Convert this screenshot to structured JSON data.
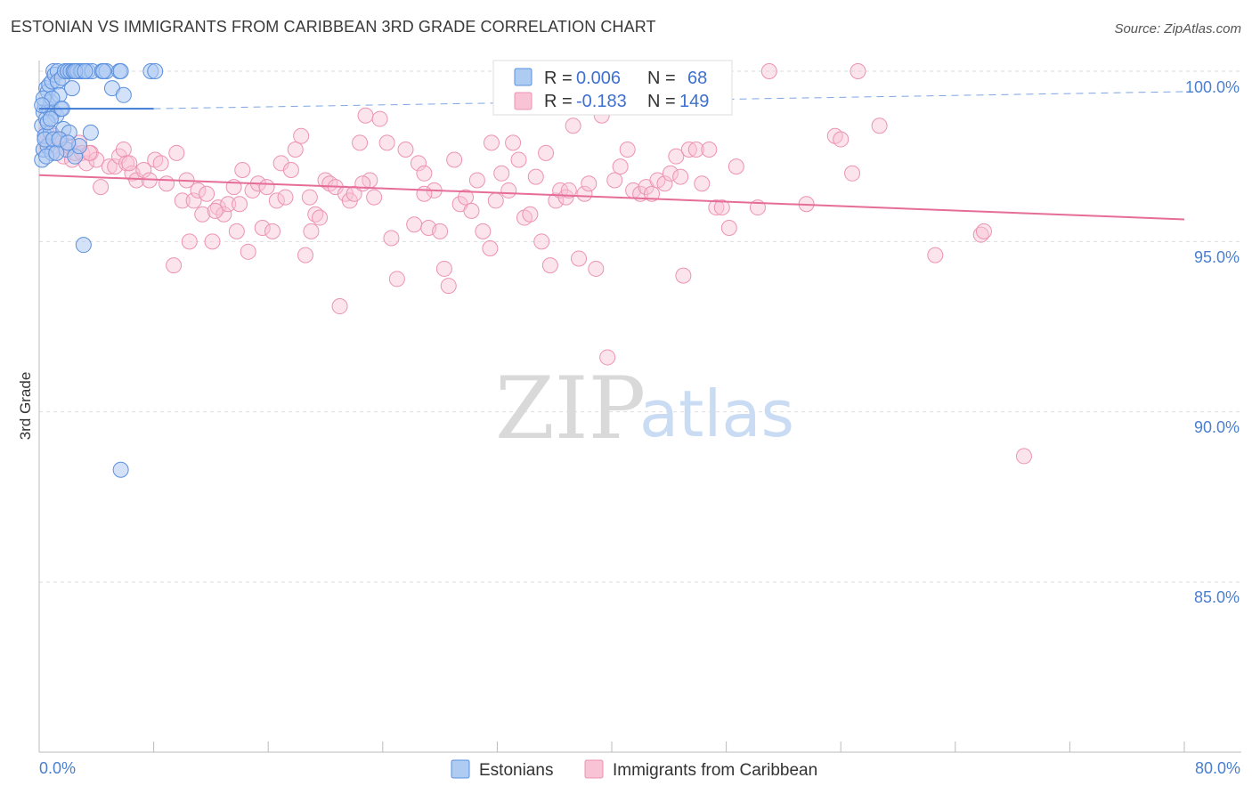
{
  "title": "ESTONIAN VS IMMIGRANTS FROM CARIBBEAN 3RD GRADE CORRELATION CHART",
  "source": "Source: ZipAtlas.com",
  "watermark": {
    "zip": "ZIP",
    "atlas": "atlas"
  },
  "legend": {
    "r_label": "R =",
    "n_label": "N =",
    "rows": [
      {
        "r": "0.006",
        "n": "68"
      },
      {
        "r": "-0.183",
        "n": "149"
      }
    ]
  },
  "colors": {
    "estonians_fill": "#aecbf2",
    "estonians_stroke": "#5b90dd",
    "estonians_line": "#3f7bd6",
    "caribbean_fill": "#f8c3d4",
    "caribbean_stroke": "#ec93b2",
    "caribbean_line": "#e56d98",
    "axis_label": "#4a7fd0",
    "grid": "#dddddd"
  },
  "chart_data": {
    "type": "scatter",
    "title": "ESTONIAN VS IMMIGRANTS FROM CARIBBEAN 3RD GRADE CORRELATION CHART",
    "xlabel": "",
    "ylabel": "3rd Grade",
    "xlim": [
      0,
      80
    ],
    "ylim": [
      80.8,
      101.0
    ],
    "x_tick_labels": [
      "0.0%",
      "80.0%"
    ],
    "y_ticks": [
      100,
      95,
      90,
      85
    ],
    "y_tick_labels": [
      "100.0%",
      "95.0%",
      "90.0%",
      "85.0%"
    ],
    "grid": true,
    "legend_position": "top-center",
    "series": [
      {
        "name": "Estonians",
        "r": 0.006,
        "n": 68,
        "trend": {
          "x": [
            0,
            8
          ],
          "y": [
            98.9,
            98.9
          ],
          "dashed_extension": {
            "x": [
              8,
              80
            ],
            "y": [
              98.9,
              99.4
            ]
          }
        },
        "points": [
          [
            0.2,
            97.4
          ],
          [
            0.2,
            98.4
          ],
          [
            0.3,
            97.7
          ],
          [
            0.3,
            98.8
          ],
          [
            0.4,
            99.0
          ],
          [
            0.4,
            98.1
          ],
          [
            0.5,
            99.5
          ],
          [
            0.5,
            98.6
          ],
          [
            0.6,
            99.4
          ],
          [
            0.6,
            97.8
          ],
          [
            0.7,
            99.6
          ],
          [
            0.7,
            98.9
          ],
          [
            0.8,
            99.1
          ],
          [
            0.8,
            98.2
          ],
          [
            0.9,
            99.7
          ],
          [
            0.9,
            97.6
          ],
          [
            1.0,
            100.0
          ],
          [
            1.0,
            98.8
          ],
          [
            1.1,
            99.9
          ],
          [
            1.2,
            98.7
          ],
          [
            1.3,
            100.0
          ],
          [
            1.3,
            99.7
          ],
          [
            1.4,
            99.3
          ],
          [
            1.5,
            98.9
          ],
          [
            1.6,
            99.8
          ],
          [
            1.7,
            98.3
          ],
          [
            1.8,
            100.0
          ],
          [
            1.9,
            97.7
          ],
          [
            2.0,
            100.0
          ],
          [
            2.0,
            100.0
          ],
          [
            2.1,
            98.2
          ],
          [
            2.2,
            100.0
          ],
          [
            2.3,
            99.5
          ],
          [
            2.4,
            100.0
          ],
          [
            2.5,
            97.5
          ],
          [
            2.6,
            100.0
          ],
          [
            2.7,
            100.0
          ],
          [
            2.8,
            97.8
          ],
          [
            2.9,
            100.0
          ],
          [
            3.0,
            100.0
          ],
          [
            3.1,
            94.9
          ],
          [
            3.4,
            100.0
          ],
          [
            3.6,
            98.2
          ],
          [
            3.7,
            100.0
          ],
          [
            4.4,
            100.0
          ],
          [
            4.7,
            100.0
          ],
          [
            5.1,
            99.5
          ],
          [
            5.6,
            100.0
          ],
          [
            5.7,
            100.0
          ],
          [
            5.9,
            99.3
          ],
          [
            7.8,
            100.0
          ],
          [
            8.1,
            100.0
          ],
          [
            5.7,
            88.3
          ],
          [
            0.3,
            99.2
          ],
          [
            0.4,
            98.0
          ],
          [
            0.5,
            97.5
          ],
          [
            1.0,
            98.0
          ],
          [
            1.2,
            97.6
          ],
          [
            0.6,
            98.5
          ],
          [
            0.9,
            99.2
          ],
          [
            1.4,
            98.0
          ],
          [
            2.5,
            100.0
          ],
          [
            3.2,
            100.0
          ],
          [
            4.5,
            100.0
          ],
          [
            0.2,
            99.0
          ],
          [
            0.8,
            98.6
          ],
          [
            1.6,
            98.9
          ],
          [
            2.0,
            97.9
          ]
        ]
      },
      {
        "name": "Immigrants from Caribbean",
        "r": -0.183,
        "n": 149,
        "trend": {
          "x": [
            0,
            80
          ],
          "y": [
            96.95,
            95.65
          ]
        },
        "points": [
          [
            0.3,
            97.7
          ],
          [
            0.4,
            98.0
          ],
          [
            0.5,
            98.2
          ],
          [
            0.7,
            97.9
          ],
          [
            0.9,
            97.6
          ],
          [
            1.0,
            98.1
          ],
          [
            1.2,
            97.8
          ],
          [
            1.5,
            98.0
          ],
          [
            1.7,
            97.5
          ],
          [
            1.9,
            97.7
          ],
          [
            2.1,
            97.8
          ],
          [
            2.3,
            97.4
          ],
          [
            2.5,
            97.6
          ],
          [
            2.8,
            97.9
          ],
          [
            3.0,
            97.6
          ],
          [
            3.3,
            97.3
          ],
          [
            3.6,
            97.6
          ],
          [
            4.0,
            97.4
          ],
          [
            4.3,
            96.6
          ],
          [
            4.9,
            97.2
          ],
          [
            5.3,
            97.2
          ],
          [
            5.6,
            97.5
          ],
          [
            5.9,
            97.7
          ],
          [
            6.1,
            97.3
          ],
          [
            6.5,
            97.0
          ],
          [
            6.8,
            96.8
          ],
          [
            7.3,
            97.1
          ],
          [
            7.7,
            96.8
          ],
          [
            8.1,
            97.4
          ],
          [
            8.5,
            97.3
          ],
          [
            8.9,
            96.7
          ],
          [
            9.4,
            94.3
          ],
          [
            9.6,
            97.6
          ],
          [
            10.0,
            96.2
          ],
          [
            10.3,
            96.8
          ],
          [
            10.5,
            95.0
          ],
          [
            10.8,
            96.2
          ],
          [
            11.1,
            96.5
          ],
          [
            11.4,
            95.8
          ],
          [
            11.7,
            96.4
          ],
          [
            12.1,
            95.0
          ],
          [
            12.5,
            96.0
          ],
          [
            12.9,
            95.8
          ],
          [
            13.2,
            96.1
          ],
          [
            13.6,
            96.6
          ],
          [
            13.8,
            95.3
          ],
          [
            14.2,
            97.1
          ],
          [
            14.6,
            94.7
          ],
          [
            14.9,
            96.5
          ],
          [
            15.3,
            96.7
          ],
          [
            15.6,
            95.4
          ],
          [
            15.9,
            96.6
          ],
          [
            16.3,
            95.3
          ],
          [
            16.6,
            96.2
          ],
          [
            16.9,
            97.3
          ],
          [
            17.2,
            96.3
          ],
          [
            17.6,
            97.1
          ],
          [
            17.9,
            97.7
          ],
          [
            18.3,
            98.1
          ],
          [
            18.6,
            94.6
          ],
          [
            19.0,
            95.3
          ],
          [
            19.3,
            95.8
          ],
          [
            19.6,
            95.7
          ],
          [
            20.0,
            96.8
          ],
          [
            20.3,
            96.7
          ],
          [
            20.7,
            96.6
          ],
          [
            21.0,
            93.1
          ],
          [
            21.4,
            96.4
          ],
          [
            21.7,
            96.2
          ],
          [
            22.0,
            96.4
          ],
          [
            22.4,
            97.9
          ],
          [
            22.8,
            98.7
          ],
          [
            23.1,
            96.8
          ],
          [
            23.4,
            96.3
          ],
          [
            23.8,
            98.6
          ],
          [
            24.3,
            97.9
          ],
          [
            24.6,
            95.1
          ],
          [
            25.0,
            93.9
          ],
          [
            25.6,
            97.7
          ],
          [
            26.2,
            95.5
          ],
          [
            26.5,
            97.3
          ],
          [
            26.9,
            97.0
          ],
          [
            27.2,
            95.4
          ],
          [
            27.6,
            96.5
          ],
          [
            28.0,
            95.3
          ],
          [
            28.3,
            94.2
          ],
          [
            28.6,
            93.7
          ],
          [
            29.0,
            97.4
          ],
          [
            29.4,
            96.1
          ],
          [
            29.8,
            96.3
          ],
          [
            30.2,
            95.9
          ],
          [
            30.6,
            96.8
          ],
          [
            31.0,
            95.3
          ],
          [
            31.5,
            94.8
          ],
          [
            31.9,
            96.2
          ],
          [
            32.3,
            97.0
          ],
          [
            32.8,
            96.5
          ],
          [
            33.1,
            97.9
          ],
          [
            33.5,
            97.4
          ],
          [
            33.9,
            95.7
          ],
          [
            34.3,
            95.8
          ],
          [
            34.7,
            96.9
          ],
          [
            35.1,
            95.0
          ],
          [
            35.7,
            94.3
          ],
          [
            36.1,
            96.2
          ],
          [
            36.4,
            96.5
          ],
          [
            36.8,
            96.3
          ],
          [
            37.3,
            98.4
          ],
          [
            37.7,
            94.5
          ],
          [
            38.1,
            96.4
          ],
          [
            38.4,
            96.7
          ],
          [
            38.9,
            94.2
          ],
          [
            39.3,
            98.7
          ],
          [
            39.7,
            91.6
          ],
          [
            40.2,
            96.8
          ],
          [
            40.6,
            97.2
          ],
          [
            41.1,
            97.7
          ],
          [
            41.5,
            96.5
          ],
          [
            42.0,
            96.4
          ],
          [
            42.4,
            96.6
          ],
          [
            42.8,
            96.4
          ],
          [
            43.2,
            96.8
          ],
          [
            43.7,
            96.7
          ],
          [
            44.1,
            97.0
          ],
          [
            44.5,
            97.5
          ],
          [
            45.0,
            94.0
          ],
          [
            45.4,
            97.7
          ],
          [
            45.9,
            97.7
          ],
          [
            46.3,
            96.7
          ],
          [
            46.8,
            97.7
          ],
          [
            47.3,
            96.0
          ],
          [
            47.7,
            96.0
          ],
          [
            48.2,
            95.4
          ],
          [
            48.7,
            97.2
          ],
          [
            50.2,
            96.0
          ],
          [
            51.0,
            100.0
          ],
          [
            53.6,
            96.1
          ],
          [
            55.6,
            98.1
          ],
          [
            56.0,
            98.0
          ],
          [
            56.8,
            97.0
          ],
          [
            57.2,
            100.0
          ],
          [
            58.7,
            98.4
          ],
          [
            62.6,
            94.6
          ],
          [
            65.8,
            95.2
          ],
          [
            66.0,
            95.3
          ],
          [
            68.8,
            88.7
          ],
          [
            3.5,
            97.6
          ],
          [
            6.3,
            97.3
          ],
          [
            12.3,
            95.9
          ],
          [
            18.9,
            96.3
          ],
          [
            26.9,
            96.4
          ],
          [
            31.6,
            97.9
          ],
          [
            35.4,
            97.6
          ],
          [
            44.8,
            96.9
          ],
          [
            14.0,
            96.1
          ],
          [
            22.6,
            96.7
          ],
          [
            37.0,
            96.5
          ]
        ]
      }
    ]
  },
  "bottom_legend": [
    "Estonians",
    "Immigrants from Caribbean"
  ]
}
